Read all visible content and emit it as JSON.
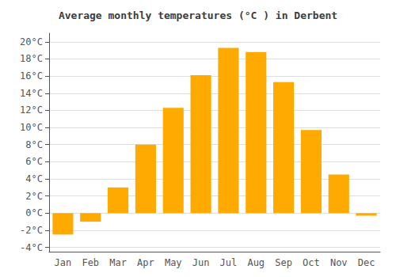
{
  "chart_data": {
    "type": "bar",
    "title": "Average monthly temperatures (°C ) in Derbent",
    "categories": [
      "Jan",
      "Feb",
      "Mar",
      "Apr",
      "May",
      "Jun",
      "Jul",
      "Aug",
      "Sep",
      "Oct",
      "Nov",
      "Dec"
    ],
    "values": [
      -2.5,
      -1.0,
      3.0,
      8.0,
      12.3,
      16.1,
      19.3,
      18.8,
      15.3,
      9.7,
      4.5,
      -0.3
    ],
    "color": "#FFAA00",
    "ylim": [
      -4.5,
      21
    ],
    "yticks": [
      {
        "value": -4,
        "label": "-4°C"
      },
      {
        "value": -2,
        "label": "-2°C"
      },
      {
        "value": 0,
        "label": "0°C"
      },
      {
        "value": 2,
        "label": "2°C"
      },
      {
        "value": 4,
        "label": "4°C"
      },
      {
        "value": 6,
        "label": "6°C"
      },
      {
        "value": 8,
        "label": "8°C"
      },
      {
        "value": 10,
        "label": "10°C"
      },
      {
        "value": 12,
        "label": "12°C"
      },
      {
        "value": 14,
        "label": "14°C"
      },
      {
        "value": 16,
        "label": "16°C"
      },
      {
        "value": 18,
        "label": "18°C"
      },
      {
        "value": 20,
        "label": "20°C"
      }
    ],
    "grid": true
  }
}
